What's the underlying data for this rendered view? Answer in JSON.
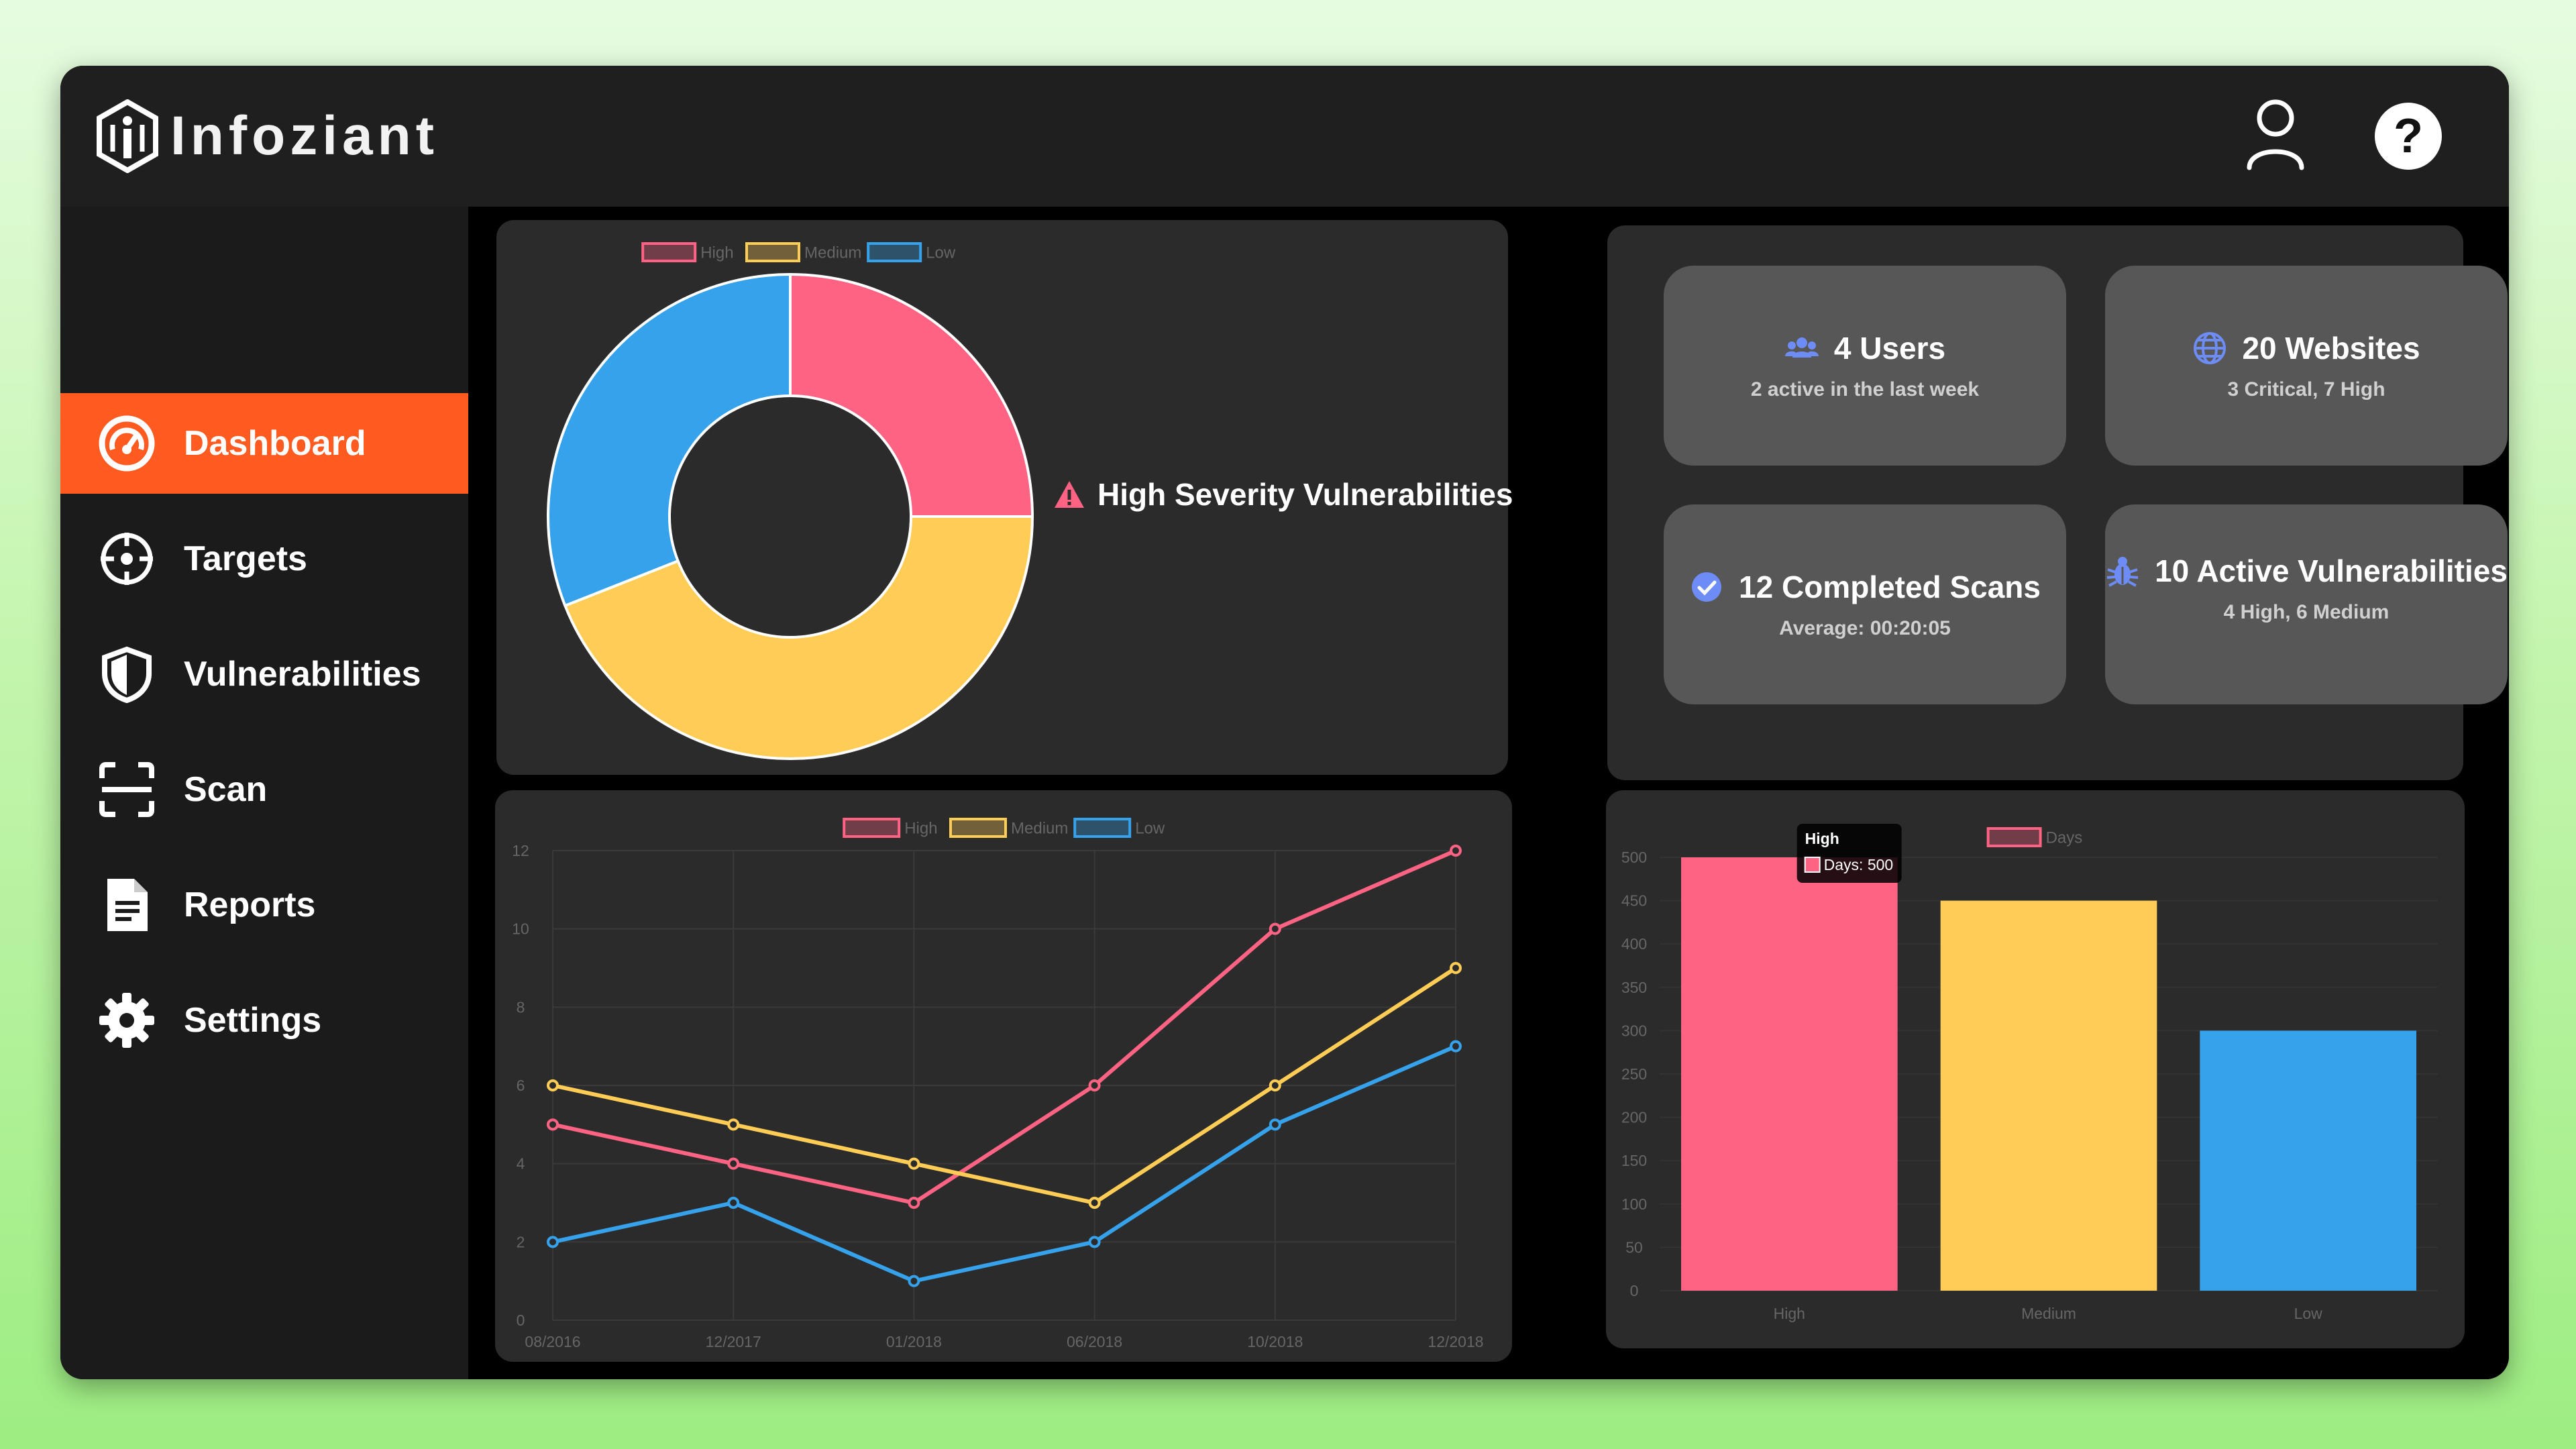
{
  "brand": {
    "name": "Infoziant"
  },
  "topbar": {
    "user_icon": "user-icon",
    "help_label": "?"
  },
  "sidebar": {
    "items": [
      {
        "label": "Dashboard",
        "icon": "speedometer-icon",
        "active": true
      },
      {
        "label": "Targets",
        "icon": "crosshair-icon",
        "active": false
      },
      {
        "label": "Vulnerabilities",
        "icon": "shield-icon",
        "active": false
      },
      {
        "label": "Scan",
        "icon": "scan-frame-icon",
        "active": false
      },
      {
        "label": "Reports",
        "icon": "document-icon",
        "active": false
      },
      {
        "label": "Settings",
        "icon": "gear-icon",
        "active": false
      }
    ]
  },
  "stats": [
    {
      "title": "4 Users",
      "subtitle": "2 active in the last week",
      "icon": "users-icon"
    },
    {
      "title": "20 Websites",
      "subtitle": "3 Critical, 7 High",
      "icon": "globe-icon"
    },
    {
      "title": "12 Completed Scans",
      "subtitle": "Average: 00:20:05",
      "icon": "check-circle-icon"
    },
    {
      "title": "10 Active Vulnerabilities",
      "subtitle": "4 High, 6 Medium",
      "icon": "bug-icon"
    }
  ],
  "donut_label": "High Severity Vulnerabilities",
  "colors": {
    "high": "#ff6384",
    "medium": "#ffcd56",
    "low": "#36a2eb",
    "accent": "#ff5a1f"
  },
  "chart_data": [
    {
      "type": "pie",
      "categories": [
        "High",
        "Medium",
        "Low"
      ],
      "values": [
        25,
        44,
        31
      ],
      "legend": "top"
    },
    {
      "type": "line",
      "x": [
        "08/2016",
        "12/2017",
        "01/2018",
        "06/2018",
        "10/2018",
        "12/2018"
      ],
      "series": [
        {
          "name": "High",
          "values": [
            5,
            4,
            3,
            6,
            10,
            12
          ]
        },
        {
          "name": "Medium",
          "values": [
            6,
            5,
            4,
            3,
            6,
            9
          ]
        },
        {
          "name": "Low",
          "values": [
            2,
            3,
            1,
            2,
            5,
            7
          ]
        }
      ],
      "ylim": [
        0,
        12
      ],
      "yticks": [
        0,
        2,
        4,
        6,
        8,
        10,
        12
      ],
      "grid": true,
      "legend": "top"
    },
    {
      "type": "bar",
      "categories": [
        "High",
        "Medium",
        "Low"
      ],
      "series": [
        {
          "name": "Days",
          "values": [
            500,
            450,
            300
          ]
        }
      ],
      "ylim": [
        0,
        500
      ],
      "yticks": [
        0,
        50,
        100,
        150,
        200,
        250,
        300,
        350,
        400,
        450,
        500
      ],
      "grid": true,
      "legend": "top",
      "tooltip": {
        "title": "High",
        "text": "Days: 500"
      }
    }
  ]
}
